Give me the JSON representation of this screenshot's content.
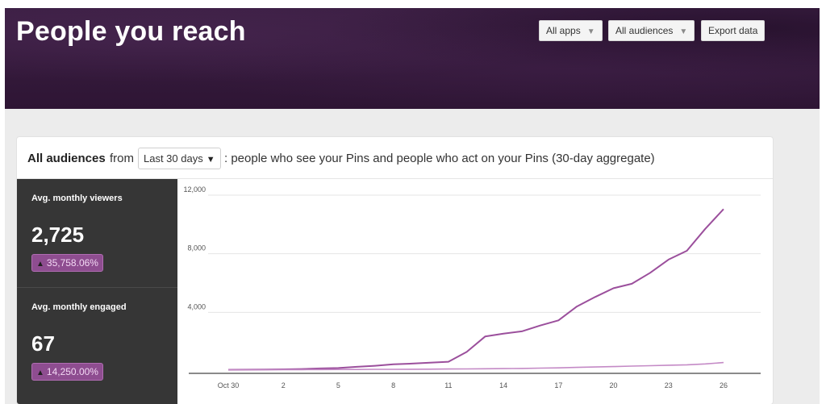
{
  "header": {
    "title": "People you reach",
    "apps_filter": "All apps",
    "audiences_filter": "All audiences",
    "export_label": "Export data"
  },
  "card": {
    "audience_label": "All audiences",
    "from_word": "from",
    "range_selected": "Last 30 days",
    "description": ": people who see your Pins and people who act on your Pins (30-day aggregate)"
  },
  "metrics": [
    {
      "label": "Avg. monthly viewers",
      "value": "2,725",
      "change": "35,758.06%"
    },
    {
      "label": "Avg. monthly engaged",
      "value": "67",
      "change": "14,250.00%"
    }
  ],
  "colors": {
    "header_bg": "#35193b",
    "metrics_bg": "#363636",
    "badge_bg": "#8e4d90",
    "viewers_line": "#9b4f9c",
    "engaged_line": "#c48ac6"
  },
  "icons": {
    "badge_arrow": "arrow-up-icon",
    "dropdown": "caret-down-icon"
  },
  "chart_data": {
    "type": "line",
    "x_labels": [
      "Oct 30",
      "2",
      "5",
      "8",
      "11",
      "14",
      "17",
      "20",
      "23",
      "26"
    ],
    "y_ticks": [
      "4,000",
      "8,000",
      "12,000"
    ],
    "ylim": [
      0,
      12000
    ],
    "grid": true,
    "series": [
      {
        "values": [
          80,
          90,
          100,
          110,
          130,
          170,
          200,
          280,
          350,
          450,
          500,
          560,
          630,
          1300,
          2350,
          2550,
          2700,
          3100,
          3450,
          4400,
          5050,
          5650,
          5950,
          6700,
          7600,
          8200,
          9700,
          11050
        ]
      },
      {
        "values": [
          80,
          80,
          85,
          90,
          90,
          95,
          100,
          100,
          110,
          110,
          115,
          120,
          130,
          140,
          150,
          160,
          170,
          190,
          210,
          240,
          270,
          300,
          330,
          360,
          390,
          420,
          480,
          570
        ]
      }
    ]
  }
}
